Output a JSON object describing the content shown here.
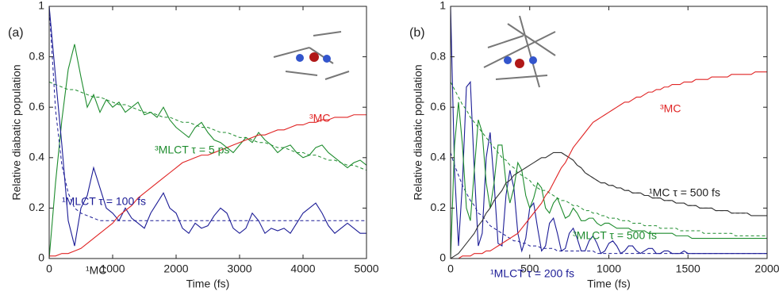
{
  "chart_data": [
    {
      "type": "line",
      "xlabel": "Time (fs)",
      "ylabel": "Relative diabatic population",
      "xlim": [
        0,
        5000
      ],
      "xticks": [
        0,
        1000,
        2000,
        3000,
        4000,
        5000
      ],
      "ylim": [
        0,
        1
      ],
      "yticks": [
        0,
        0.2,
        0.4,
        0.6,
        0.8,
        1
      ],
      "x": [
        0,
        100,
        200,
        300,
        400,
        500,
        600,
        700,
        800,
        900,
        1000,
        1100,
        1200,
        1300,
        1400,
        1500,
        1600,
        1700,
        1800,
        1900,
        2000,
        2100,
        2200,
        2300,
        2400,
        2500,
        2600,
        2700,
        2800,
        2900,
        3000,
        3100,
        3200,
        3300,
        3400,
        3500,
        3600,
        3700,
        3800,
        3900,
        4000,
        4100,
        4200,
        4300,
        4400,
        4500,
        4600,
        4700,
        4800,
        4900,
        5000
      ],
      "series": [
        {
          "color": "#1e8c2e",
          "dashed": false,
          "values": [
            0,
            0.3,
            0.55,
            0.75,
            0.85,
            0.72,
            0.6,
            0.65,
            0.58,
            0.63,
            0.6,
            0.62,
            0.58,
            0.6,
            0.62,
            0.57,
            0.58,
            0.56,
            0.6,
            0.55,
            0.52,
            0.5,
            0.48,
            0.52,
            0.54,
            0.5,
            0.47,
            0.46,
            0.44,
            0.42,
            0.45,
            0.48,
            0.46,
            0.5,
            0.47,
            0.45,
            0.42,
            0.44,
            0.45,
            0.42,
            0.4,
            0.41,
            0.44,
            0.45,
            0.42,
            0.4,
            0.38,
            0.36,
            0.38,
            0.39,
            0.37
          ]
        },
        {
          "color": "#1e8c2e",
          "dashed": true,
          "values": [
            0.7,
            0.69,
            0.68,
            0.67,
            0.67,
            0.66,
            0.65,
            0.64,
            0.64,
            0.63,
            0.62,
            0.61,
            0.61,
            0.6,
            0.59,
            0.58,
            0.58,
            0.57,
            0.56,
            0.56,
            0.55,
            0.54,
            0.54,
            0.53,
            0.52,
            0.52,
            0.51,
            0.5,
            0.5,
            0.49,
            0.48,
            0.48,
            0.47,
            0.46,
            0.46,
            0.45,
            0.44,
            0.44,
            0.43,
            0.42,
            0.42,
            0.41,
            0.41,
            0.4,
            0.39,
            0.39,
            0.38,
            0.37,
            0.37,
            0.36,
            0.35
          ]
        },
        {
          "color": "#1c1c96",
          "dashed": false,
          "values": [
            1,
            0.72,
            0.45,
            0.15,
            0.05,
            0.2,
            0.25,
            0.36,
            0.28,
            0.2,
            0.18,
            0.15,
            0.2,
            0.16,
            0.14,
            0.12,
            0.18,
            0.22,
            0.26,
            0.2,
            0.18,
            0.12,
            0.1,
            0.14,
            0.12,
            0.13,
            0.17,
            0.2,
            0.18,
            0.12,
            0.1,
            0.12,
            0.18,
            0.15,
            0.1,
            0.12,
            0.11,
            0.12,
            0.1,
            0.14,
            0.18,
            0.2,
            0.22,
            0.18,
            0.13,
            0.1,
            0.12,
            0.14,
            0.12,
            0.1,
            0.1
          ]
        },
        {
          "color": "#1c1c96",
          "dashed": true,
          "values": [
            1,
            0.59,
            0.37,
            0.26,
            0.2,
            0.18,
            0.17,
            0.16,
            0.15,
            0.15,
            0.15,
            0.15,
            0.15,
            0.15,
            0.15,
            0.15,
            0.15,
            0.15,
            0.15,
            0.15,
            0.15,
            0.15,
            0.15,
            0.15,
            0.15,
            0.15,
            0.15,
            0.15,
            0.15,
            0.15,
            0.15,
            0.15,
            0.15,
            0.15,
            0.15,
            0.15,
            0.15,
            0.15,
            0.15,
            0.15,
            0.15,
            0.15,
            0.15,
            0.15,
            0.15,
            0.15,
            0.15,
            0.15,
            0.15,
            0.15,
            0.15
          ]
        },
        {
          "color": "#e02424",
          "dashed": false,
          "values": [
            0.01,
            0.01,
            0.02,
            0.02,
            0.03,
            0.04,
            0.06,
            0.08,
            0.1,
            0.12,
            0.14,
            0.17,
            0.19,
            0.21,
            0.24,
            0.26,
            0.28,
            0.3,
            0.32,
            0.34,
            0.36,
            0.38,
            0.39,
            0.4,
            0.41,
            0.41,
            0.42,
            0.43,
            0.44,
            0.45,
            0.46,
            0.47,
            0.48,
            0.49,
            0.49,
            0.5,
            0.51,
            0.51,
            0.52,
            0.53,
            0.53,
            0.54,
            0.54,
            0.55,
            0.55,
            0.56,
            0.56,
            0.56,
            0.57,
            0.57,
            0.57
          ]
        }
      ],
      "annotations": [
        {
          "text": "(a)",
          "color": "#222222"
        },
        {
          "text": "³MLCT  τ = 5 ps",
          "color": "#1e8c2e"
        },
        {
          "text": "¹MLCT  τ = 100 fs",
          "color": "#1c1c96"
        },
        {
          "text": "³MC",
          "color": "#e02424"
        },
        {
          "text": "¹MC",
          "color": "#222222"
        }
      ]
    },
    {
      "type": "line",
      "xlabel": "Time (fs)",
      "ylabel": "Relative diabatic population",
      "xlim": [
        0,
        2000
      ],
      "xticks": [
        0,
        500,
        1000,
        1500,
        2000
      ],
      "ylim": [
        0,
        1
      ],
      "yticks": [
        0,
        0.2,
        0.4,
        0.6,
        0.8,
        1
      ],
      "x": [
        0,
        25,
        50,
        75,
        100,
        125,
        150,
        175,
        200,
        225,
        250,
        275,
        300,
        325,
        350,
        375,
        400,
        425,
        450,
        475,
        500,
        525,
        550,
        575,
        600,
        625,
        650,
        675,
        700,
        725,
        750,
        775,
        800,
        825,
        850,
        875,
        900,
        925,
        950,
        975,
        1000,
        1025,
        1050,
        1075,
        1100,
        1125,
        1150,
        1175,
        1200,
        1225,
        1250,
        1275,
        1300,
        1325,
        1350,
        1375,
        1400,
        1425,
        1450,
        1475,
        1500,
        1525,
        1550,
        1575,
        1600,
        1625,
        1650,
        1675,
        1700,
        1725,
        1750,
        1775,
        1800,
        1825,
        1850,
        1875,
        1900,
        1925,
        1950,
        1975,
        2000
      ],
      "series": [
        {
          "color": "#1c1c96",
          "dashed": false,
          "values": [
            1.0,
            0.35,
            0.05,
            0.3,
            0.68,
            0.7,
            0.35,
            0.05,
            0.1,
            0.4,
            0.5,
            0.3,
            0.06,
            0.05,
            0.25,
            0.35,
            0.28,
            0.1,
            0.03,
            0.08,
            0.2,
            0.22,
            0.12,
            0.03,
            0.05,
            0.14,
            0.16,
            0.1,
            0.03,
            0.04,
            0.1,
            0.12,
            0.08,
            0.03,
            0.03,
            0.07,
            0.09,
            0.06,
            0.02,
            0.03,
            0.06,
            0.07,
            0.05,
            0.02,
            0.03,
            0.05,
            0.05,
            0.03,
            0.02,
            0.03,
            0.04,
            0.04,
            0.02,
            0.02,
            0.03,
            0.03,
            0.02,
            0.02,
            0.02,
            0.03,
            0.02,
            0.02,
            0.02,
            0.02,
            0.02,
            0.02,
            0.02,
            0.02,
            0.02,
            0.02,
            0.02,
            0.02,
            0.02,
            0.02,
            0.02,
            0.02,
            0.02,
            0.02,
            0.02,
            0.02,
            0.02
          ]
        },
        {
          "color": "#1c1c96",
          "dashed": true,
          "values": [
            0.42,
            0.37,
            0.33,
            0.29,
            0.26,
            0.23,
            0.21,
            0.18,
            0.17,
            0.15,
            0.13,
            0.12,
            0.11,
            0.1,
            0.09,
            0.08,
            0.07,
            0.07,
            0.06,
            0.06,
            0.05,
            0.05,
            0.05,
            0.04,
            0.04,
            0.04,
            0.04,
            0.03,
            0.03,
            0.03,
            0.03,
            0.03,
            0.03,
            0.03,
            0.03,
            0.03,
            0.03,
            0.02,
            0.02,
            0.02,
            0.02,
            0.02,
            0.02,
            0.02,
            0.02,
            0.02,
            0.02,
            0.02,
            0.02,
            0.02,
            0.02,
            0.02,
            0.02,
            0.02,
            0.02,
            0.02,
            0.02,
            0.02,
            0.02,
            0.02,
            0.02,
            0.02,
            0.02,
            0.02,
            0.02,
            0.02,
            0.02,
            0.02,
            0.02,
            0.02,
            0.02,
            0.02,
            0.02,
            0.02,
            0.02,
            0.02,
            0.02,
            0.02,
            0.02,
            0.02,
            0.02
          ]
        },
        {
          "color": "#1e8c2e",
          "dashed": false,
          "values": [
            0,
            0.45,
            0.62,
            0.45,
            0.2,
            0.15,
            0.35,
            0.55,
            0.5,
            0.3,
            0.2,
            0.3,
            0.45,
            0.45,
            0.3,
            0.22,
            0.28,
            0.38,
            0.35,
            0.25,
            0.2,
            0.24,
            0.3,
            0.28,
            0.2,
            0.18,
            0.22,
            0.24,
            0.2,
            0.16,
            0.17,
            0.2,
            0.18,
            0.15,
            0.15,
            0.16,
            0.16,
            0.14,
            0.13,
            0.14,
            0.14,
            0.13,
            0.12,
            0.12,
            0.12,
            0.12,
            0.11,
            0.11,
            0.11,
            0.11,
            0.1,
            0.1,
            0.1,
            0.1,
            0.1,
            0.1,
            0.1,
            0.09,
            0.09,
            0.09,
            0.09,
            0.08,
            0.08,
            0.08,
            0.08,
            0.08,
            0.08,
            0.08,
            0.08,
            0.08,
            0.08,
            0.08,
            0.08,
            0.08,
            0.08,
            0.08,
            0.08,
            0.08,
            0.08,
            0.08,
            0.08
          ]
        },
        {
          "color": "#1e8c2e",
          "dashed": true,
          "values": [
            0.7,
            0.67,
            0.64,
            0.61,
            0.59,
            0.56,
            0.54,
            0.52,
            0.5,
            0.48,
            0.46,
            0.44,
            0.42,
            0.4,
            0.39,
            0.37,
            0.36,
            0.34,
            0.33,
            0.32,
            0.31,
            0.29,
            0.28,
            0.27,
            0.27,
            0.26,
            0.25,
            0.24,
            0.23,
            0.23,
            0.22,
            0.21,
            0.21,
            0.2,
            0.19,
            0.19,
            0.18,
            0.18,
            0.17,
            0.17,
            0.16,
            0.16,
            0.16,
            0.15,
            0.15,
            0.15,
            0.14,
            0.14,
            0.14,
            0.13,
            0.13,
            0.13,
            0.13,
            0.12,
            0.12,
            0.12,
            0.12,
            0.12,
            0.11,
            0.11,
            0.11,
            0.11,
            0.11,
            0.11,
            0.1,
            0.1,
            0.1,
            0.1,
            0.1,
            0.1,
            0.1,
            0.1,
            0.09,
            0.09,
            0.09,
            0.09,
            0.09,
            0.09,
            0.09,
            0.09,
            0.09
          ]
        },
        {
          "color": "#333333",
          "dashed": false,
          "values": [
            0,
            0.01,
            0.02,
            0.04,
            0.06,
            0.08,
            0.1,
            0.13,
            0.15,
            0.18,
            0.2,
            0.23,
            0.25,
            0.27,
            0.3,
            0.31,
            0.33,
            0.34,
            0.35,
            0.36,
            0.37,
            0.38,
            0.39,
            0.4,
            0.4,
            0.41,
            0.42,
            0.42,
            0.42,
            0.41,
            0.4,
            0.39,
            0.37,
            0.36,
            0.34,
            0.33,
            0.32,
            0.31,
            0.3,
            0.3,
            0.29,
            0.29,
            0.28,
            0.28,
            0.27,
            0.27,
            0.26,
            0.26,
            0.26,
            0.25,
            0.25,
            0.24,
            0.24,
            0.24,
            0.23,
            0.23,
            0.23,
            0.22,
            0.22,
            0.22,
            0.21,
            0.21,
            0.21,
            0.2,
            0.2,
            0.2,
            0.2,
            0.19,
            0.19,
            0.19,
            0.19,
            0.18,
            0.18,
            0.18,
            0.18,
            0.18,
            0.17,
            0.17,
            0.17,
            0.17,
            0.17
          ]
        },
        {
          "color": "#333333",
          "dashed": true,
          "values": [
            null,
            null,
            null,
            null,
            null,
            null,
            null,
            null,
            null,
            null,
            null,
            null,
            null,
            null,
            null,
            null,
            null,
            null,
            null,
            null,
            null,
            null,
            null,
            null,
            null,
            null,
            null,
            null,
            0.42,
            0.41,
            0.4,
            0.39,
            0.37,
            0.36,
            0.34,
            0.33,
            0.32,
            0.31,
            0.3,
            0.3,
            0.29,
            0.29,
            0.28,
            0.28,
            0.27,
            0.27,
            0.26,
            0.26,
            0.26,
            0.25,
            0.25,
            0.24,
            0.24,
            0.24,
            0.23,
            0.23,
            0.23,
            0.22,
            0.22,
            0.22,
            0.21,
            0.21,
            0.21,
            0.2,
            0.2,
            0.2,
            0.2,
            0.19,
            0.19,
            0.19,
            0.19,
            0.18,
            0.18,
            0.18,
            0.18,
            0.18,
            0.17,
            0.17,
            0.17,
            0.17,
            0.17
          ]
        },
        {
          "color": "#e02424",
          "dashed": false,
          "values": [
            0,
            0,
            0,
            0.01,
            0.01,
            0.01,
            0.02,
            0.02,
            0.02,
            0.03,
            0.03,
            0.04,
            0.05,
            0.06,
            0.07,
            0.08,
            0.09,
            0.1,
            0.12,
            0.14,
            0.16,
            0.18,
            0.2,
            0.22,
            0.25,
            0.27,
            0.3,
            0.33,
            0.36,
            0.38,
            0.41,
            0.44,
            0.46,
            0.48,
            0.5,
            0.52,
            0.54,
            0.55,
            0.56,
            0.57,
            0.58,
            0.59,
            0.6,
            0.61,
            0.62,
            0.62,
            0.63,
            0.64,
            0.64,
            0.65,
            0.66,
            0.66,
            0.67,
            0.67,
            0.68,
            0.68,
            0.69,
            0.69,
            0.69,
            0.7,
            0.7,
            0.7,
            0.71,
            0.71,
            0.71,
            0.71,
            0.72,
            0.72,
            0.72,
            0.72,
            0.72,
            0.73,
            0.73,
            0.73,
            0.73,
            0.73,
            0.73,
            0.74,
            0.74,
            0.74,
            0.74
          ]
        }
      ],
      "annotations": [
        {
          "text": "(b)",
          "color": "#222222"
        },
        {
          "text": "³MC",
          "color": "#e02424"
        },
        {
          "text": "¹MC  τ = 500 fs",
          "color": "#222222"
        },
        {
          "text": "³MLCT  τ = 500 fs",
          "color": "#1e8c2e"
        },
        {
          "text": "¹MLCT  τ = 200 fs",
          "color": "#1c1c96"
        }
      ]
    }
  ]
}
